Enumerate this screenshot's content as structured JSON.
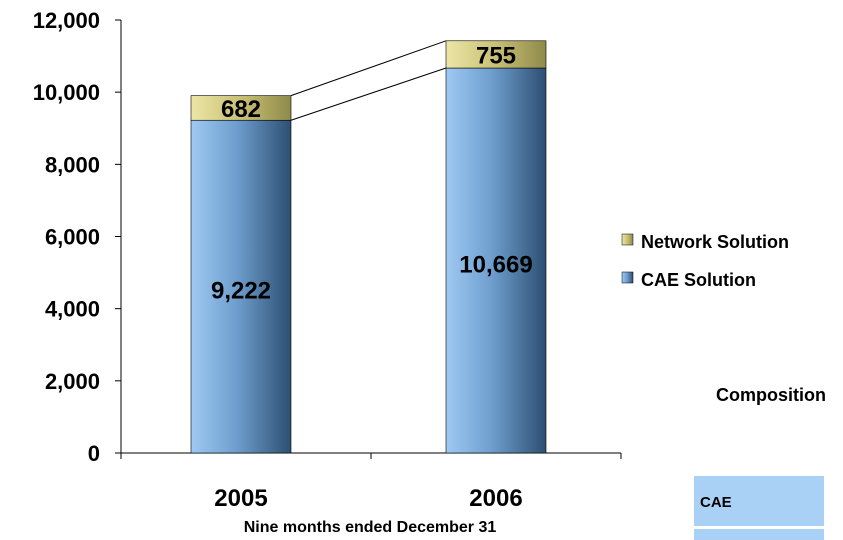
{
  "chart_data": {
    "type": "bar",
    "stacked": true,
    "categories": [
      "2005",
      "2006"
    ],
    "series": [
      {
        "name": "CAE Solution",
        "values": [
          9222,
          10669
        ],
        "color": "#8ab8e8"
      },
      {
        "name": "Network Solution",
        "values": [
          682,
          755
        ],
        "color": "#d6cf86"
      }
    ],
    "title": "",
    "xlabel": "Nine months ended December 31",
    "ylabel": "",
    "ylim": [
      0,
      12000
    ],
    "yticks": [
      0,
      2000,
      4000,
      6000,
      8000,
      10000,
      12000
    ],
    "ytick_labels": [
      "0",
      "2,000",
      "4,000",
      "6,000",
      "8,000",
      "10,000",
      "12,000"
    ],
    "value_labels": [
      [
        "9,222",
        "10,669"
      ],
      [
        "682",
        "755"
      ]
    ],
    "legend": {
      "placement": "right",
      "entries": [
        "Network Solution",
        "CAE Solution"
      ]
    },
    "grid": false,
    "series_lines": true
  },
  "composition": {
    "title": "Composition",
    "label": "CAE"
  }
}
